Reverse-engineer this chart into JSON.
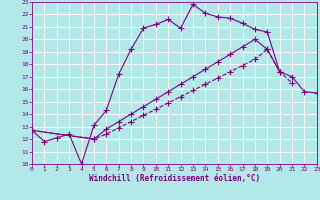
{
  "xlabel": "Windchill (Refroidissement éolien,°C)",
  "xlim": [
    0,
    23
  ],
  "ylim": [
    10,
    23
  ],
  "xticks": [
    0,
    1,
    2,
    3,
    4,
    5,
    6,
    7,
    8,
    9,
    10,
    11,
    12,
    13,
    14,
    15,
    16,
    17,
    18,
    19,
    20,
    21,
    22,
    23
  ],
  "yticks": [
    10,
    11,
    12,
    13,
    14,
    15,
    16,
    17,
    18,
    19,
    20,
    21,
    22,
    23
  ],
  "background_color": "#b2e8e8",
  "grid_color": "#c8c8e8",
  "line_color": "#800080",
  "line1_x": [
    0,
    1,
    2,
    3,
    4,
    5,
    6,
    7,
    8,
    9,
    10,
    11,
    12,
    13,
    14,
    15,
    16,
    17,
    18,
    19,
    20
  ],
  "line1_y": [
    12.7,
    11.8,
    12.1,
    12.4,
    10.0,
    13.1,
    14.3,
    17.2,
    19.2,
    20.9,
    21.2,
    21.6,
    20.9,
    22.8,
    22.1,
    21.8,
    21.7,
    21.3,
    20.8,
    20.6,
    17.4
  ],
  "line2_x": [
    0,
    5,
    6,
    7,
    8,
    9,
    10,
    11,
    12,
    13,
    14,
    15,
    16,
    17,
    18,
    19,
    20,
    21
  ],
  "line2_y": [
    12.7,
    12.0,
    12.4,
    12.9,
    13.4,
    13.9,
    14.4,
    14.9,
    15.4,
    15.9,
    16.4,
    16.9,
    17.4,
    17.9,
    18.4,
    19.2,
    17.4,
    16.5
  ],
  "line3_x": [
    0,
    5,
    6,
    7,
    8,
    9,
    10,
    11,
    12,
    13,
    14,
    15,
    16,
    17,
    18,
    19,
    20,
    21,
    22,
    23
  ],
  "line3_y": [
    12.7,
    12.0,
    12.8,
    13.4,
    14.0,
    14.6,
    15.2,
    15.8,
    16.4,
    17.0,
    17.6,
    18.2,
    18.8,
    19.4,
    20.0,
    19.2,
    17.4,
    17.0,
    15.8,
    15.7
  ]
}
